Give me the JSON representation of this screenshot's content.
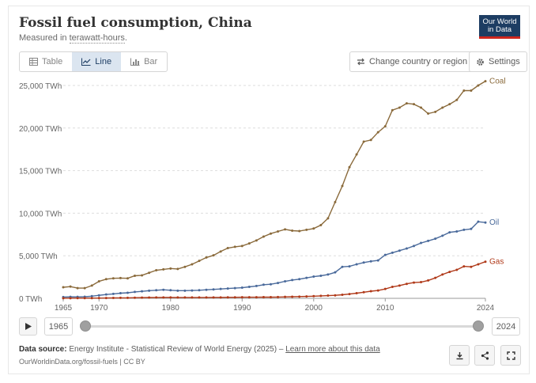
{
  "header": {
    "title": "Fossil fuel consumption, China",
    "subtitle_prefix": "Measured in ",
    "subtitle_unit": "terawatt-hours",
    "subtitle_suffix": "."
  },
  "logo": {
    "line1": "Our World",
    "line2": "in Data"
  },
  "tabs": [
    {
      "label": "Table",
      "icon": "table-icon"
    },
    {
      "label": "Line",
      "icon": "line-chart-icon",
      "active": true
    },
    {
      "label": "Bar",
      "icon": "bar-chart-icon"
    }
  ],
  "controls": {
    "change_country": "Change country or region",
    "settings": "Settings"
  },
  "timeline": {
    "start": "1965",
    "end": "2024"
  },
  "footer": {
    "source_label": "Data source:",
    "source_text": " Energy Institute - Statistical Review of World Energy (2025) – ",
    "learn_more": "Learn more about this data",
    "url": "OurWorldinData.org/fossil-fuels | CC BY"
  },
  "colors": {
    "coal": "#8a6a3b",
    "oil": "#4a6a9b",
    "gas": "#b03a1a",
    "grid": "#dddddd",
    "axis_text": "#666666"
  },
  "chart_data": {
    "type": "line",
    "ylim": [
      0,
      25000
    ],
    "y_ticks": [
      "0 TWh",
      "5,000 TWh",
      "10,000 TWh",
      "15,000 TWh",
      "20,000 TWh",
      "25,000 TWh"
    ],
    "y_tick_values": [
      0,
      5000,
      10000,
      15000,
      20000,
      25000
    ],
    "x_tick_values": [
      1965,
      1970,
      1980,
      1990,
      2000,
      2010,
      2024
    ],
    "x_ticks": [
      "1965",
      "1970",
      "1980",
      "1990",
      "2000",
      "2010",
      "2024"
    ],
    "xlim": [
      1965,
      2024
    ],
    "grid": true,
    "x": [
      1965,
      1966,
      1967,
      1968,
      1969,
      1970,
      1971,
      1972,
      1973,
      1974,
      1975,
      1976,
      1977,
      1978,
      1979,
      1980,
      1981,
      1982,
      1983,
      1984,
      1985,
      1986,
      1987,
      1988,
      1989,
      1990,
      1991,
      1992,
      1993,
      1994,
      1995,
      1996,
      1997,
      1998,
      1999,
      2000,
      2001,
      2002,
      2003,
      2004,
      2005,
      2006,
      2007,
      2008,
      2009,
      2010,
      2011,
      2012,
      2013,
      2014,
      2015,
      2016,
      2017,
      2018,
      2019,
      2020,
      2021,
      2022,
      2023,
      2024
    ],
    "series": [
      {
        "name": "Coal",
        "color": "#8a6a3b",
        "values": [
          1300,
          1380,
          1200,
          1200,
          1500,
          2000,
          2250,
          2350,
          2380,
          2350,
          2650,
          2700,
          3000,
          3300,
          3400,
          3500,
          3450,
          3700,
          4000,
          4400,
          4800,
          5050,
          5500,
          5900,
          6050,
          6150,
          6450,
          6800,
          7250,
          7600,
          7850,
          8100,
          7950,
          7900,
          8050,
          8200,
          8600,
          9400,
          11300,
          13200,
          15400,
          16900,
          18400,
          18600,
          19500,
          20200,
          22100,
          22400,
          22900,
          22800,
          22400,
          21700,
          21900,
          22400,
          22800,
          23300,
          24400,
          24400,
          25000,
          25500
        ]
      },
      {
        "name": "Oil",
        "color": "#4a6a9b",
        "values": [
          150,
          180,
          170,
          190,
          250,
          350,
          450,
          520,
          600,
          650,
          750,
          820,
          900,
          950,
          1000,
          950,
          900,
          900,
          920,
          950,
          1000,
          1050,
          1100,
          1150,
          1200,
          1250,
          1350,
          1450,
          1600,
          1650,
          1800,
          2000,
          2150,
          2250,
          2400,
          2550,
          2650,
          2800,
          3050,
          3700,
          3750,
          4000,
          4200,
          4350,
          4450,
          5100,
          5350,
          5600,
          5850,
          6150,
          6500,
          6750,
          7000,
          7350,
          7750,
          7850,
          8050,
          8150,
          9000,
          8900
        ]
      },
      {
        "name": "Gas",
        "color": "#b03a1a",
        "values": [
          10,
          15,
          20,
          20,
          25,
          30,
          40,
          50,
          55,
          60,
          70,
          80,
          90,
          100,
          110,
          110,
          100,
          100,
          100,
          100,
          100,
          110,
          110,
          120,
          120,
          130,
          130,
          130,
          140,
          140,
          150,
          170,
          190,
          200,
          220,
          250,
          290,
          320,
          350,
          420,
          500,
          600,
          720,
          840,
          920,
          1100,
          1350,
          1500,
          1700,
          1850,
          1900,
          2100,
          2400,
          2800,
          3100,
          3350,
          3750,
          3700,
          4000,
          4300
        ]
      }
    ]
  }
}
